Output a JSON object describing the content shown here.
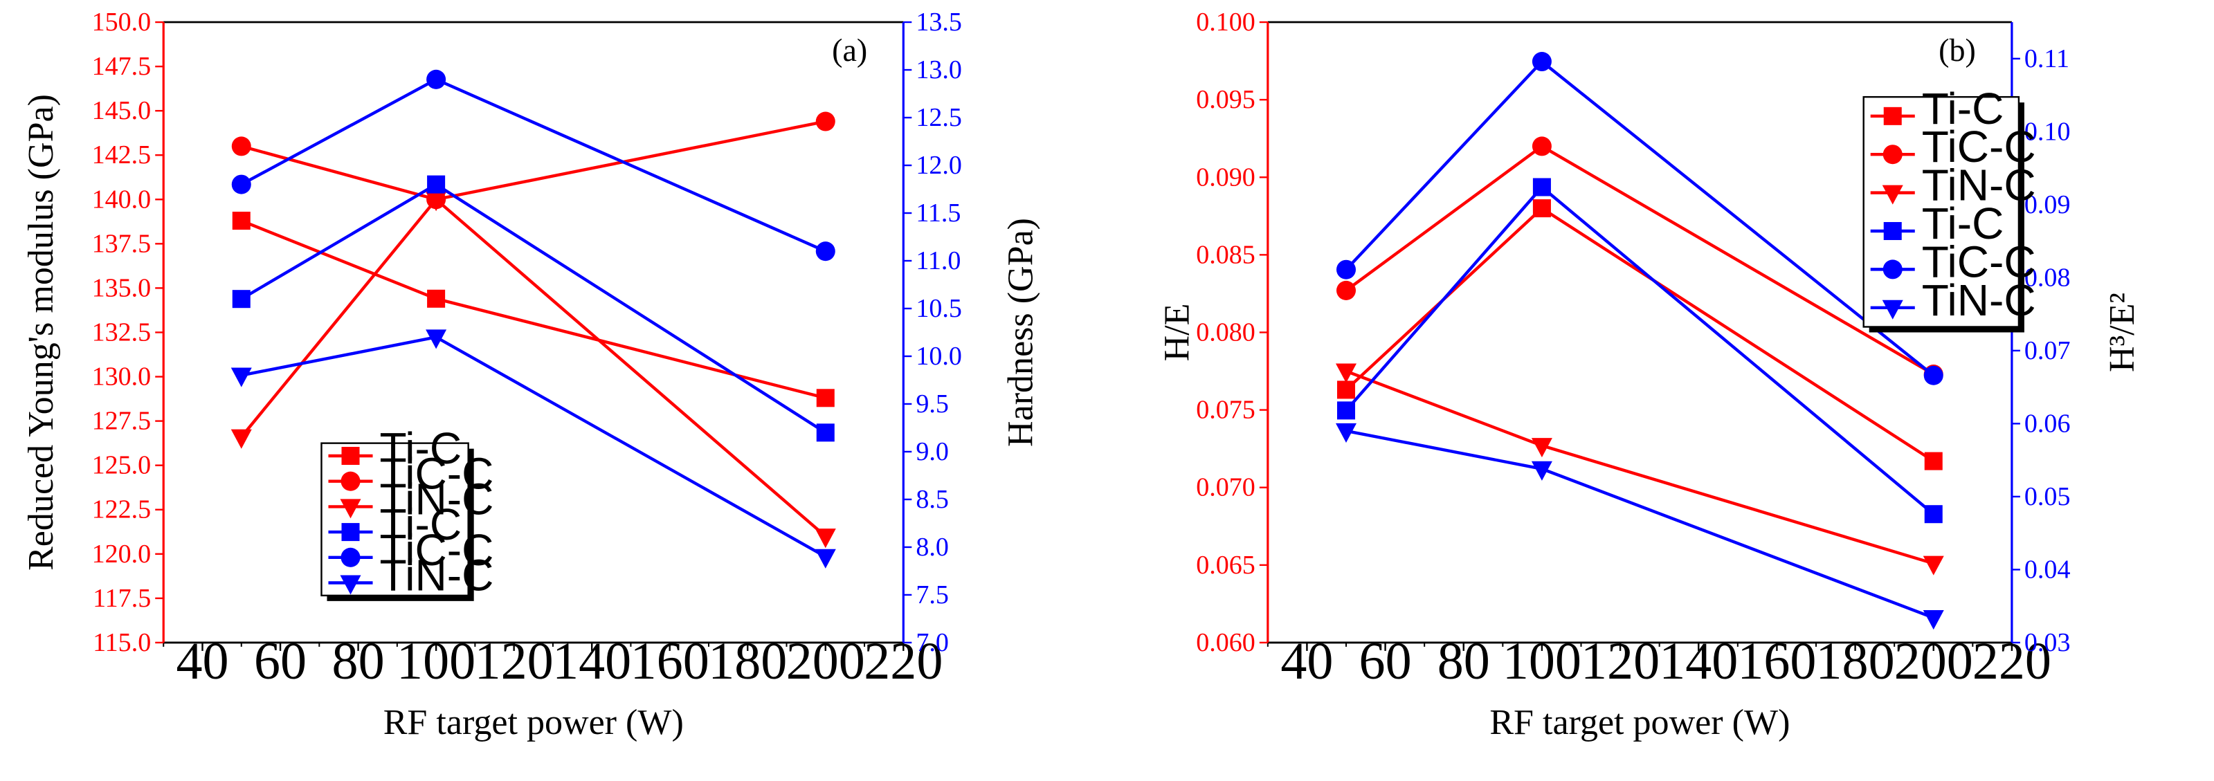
{
  "chart_data": [
    {
      "type": "line",
      "panel_label": "(a)",
      "xlabel": "RF target power (W)",
      "ylabel": "Reduced Young's modulus (GPa)",
      "y2label": "Hardness (GPa)",
      "xlim": [
        30,
        220
      ],
      "ylim": [
        115,
        150
      ],
      "y2lim": [
        7,
        13.5
      ],
      "x_ticks": [
        40,
        60,
        80,
        100,
        120,
        140,
        160,
        180,
        200,
        220
      ],
      "y_ticks": [
        "115.0",
        "117.5",
        "120.0",
        "122.5",
        "125.0",
        "127.5",
        "130.0",
        "132.5",
        "135.0",
        "137.5",
        "140.0",
        "142.5",
        "145.0",
        "147.5",
        "150.0"
      ],
      "y2_ticks": [
        "7.0",
        "7.5",
        "8.0",
        "8.5",
        "9.0",
        "9.5",
        "10.0",
        "10.5",
        "11.0",
        "11.5",
        "12.0",
        "12.5",
        "13.0",
        "13.5"
      ],
      "left_axis_color": "#ff0000",
      "right_axis_color": "#0000ff",
      "legend_position": "bottom-left",
      "x": [
        50,
        100,
        200
      ],
      "series": [
        {
          "name": "Ti-C",
          "axis": "left",
          "marker": "square",
          "color": "#ff0000",
          "values": [
            138.8,
            134.4,
            128.8
          ]
        },
        {
          "name": "TiC-C",
          "axis": "left",
          "marker": "circle",
          "color": "#ff0000",
          "values": [
            143.0,
            140.0,
            144.4
          ]
        },
        {
          "name": "TiN-C",
          "axis": "left",
          "marker": "triangle",
          "color": "#ff0000",
          "values": [
            126.6,
            140.0,
            121.0
          ]
        },
        {
          "name": "Ti-C",
          "axis": "right",
          "marker": "square",
          "color": "#0000ff",
          "values": [
            10.6,
            11.8,
            9.2
          ]
        },
        {
          "name": "TiC-C",
          "axis": "right",
          "marker": "circle",
          "color": "#0000ff",
          "values": [
            11.8,
            12.9,
            11.1
          ]
        },
        {
          "name": "TiN-C",
          "axis": "right",
          "marker": "triangle",
          "color": "#0000ff",
          "values": [
            9.8,
            10.2,
            7.9
          ]
        }
      ]
    },
    {
      "type": "line",
      "panel_label": "(b)",
      "xlabel": "RF target power (W)",
      "ylabel": "H/E",
      "y2label": "H³/E²",
      "xlim": [
        30,
        220
      ],
      "ylim": [
        0.06,
        0.1
      ],
      "y2lim": [
        0.03,
        0.115
      ],
      "x_ticks": [
        40,
        60,
        80,
        100,
        120,
        140,
        160,
        180,
        200,
        220
      ],
      "y_ticks": [
        "0.060",
        "0.065",
        "0.070",
        "0.075",
        "0.080",
        "0.085",
        "0.090",
        "0.095",
        "0.100"
      ],
      "y2_ticks": [
        "0.03",
        "0.04",
        "0.05",
        "0.06",
        "0.07",
        "0.08",
        "0.09",
        "0.10",
        "0.11"
      ],
      "left_axis_color": "#ff0000",
      "right_axis_color": "#0000ff",
      "legend_position": "top-right",
      "x": [
        50,
        100,
        200
      ],
      "series": [
        {
          "name": "Ti-C",
          "axis": "left",
          "marker": "square",
          "color": "#ff0000",
          "values": [
            0.0763,
            0.088,
            0.0717
          ]
        },
        {
          "name": "TiC-C",
          "axis": "left",
          "marker": "circle",
          "color": "#ff0000",
          "values": [
            0.0827,
            0.092,
            0.0773
          ]
        },
        {
          "name": "TiN-C",
          "axis": "left",
          "marker": "triangle",
          "color": "#ff0000",
          "values": [
            0.0775,
            0.0727,
            0.0651
          ]
        },
        {
          "name": "Ti-C",
          "axis": "right",
          "marker": "square",
          "color": "#0000ff",
          "values": [
            0.0618,
            0.0924,
            0.0476
          ]
        },
        {
          "name": "TiC-C",
          "axis": "right",
          "marker": "circle",
          "color": "#0000ff",
          "values": [
            0.0811,
            0.1096,
            0.0666
          ]
        },
        {
          "name": "TiN-C",
          "axis": "right",
          "marker": "triangle",
          "color": "#0000ff",
          "values": [
            0.059,
            0.0538,
            0.0334
          ]
        }
      ]
    }
  ]
}
